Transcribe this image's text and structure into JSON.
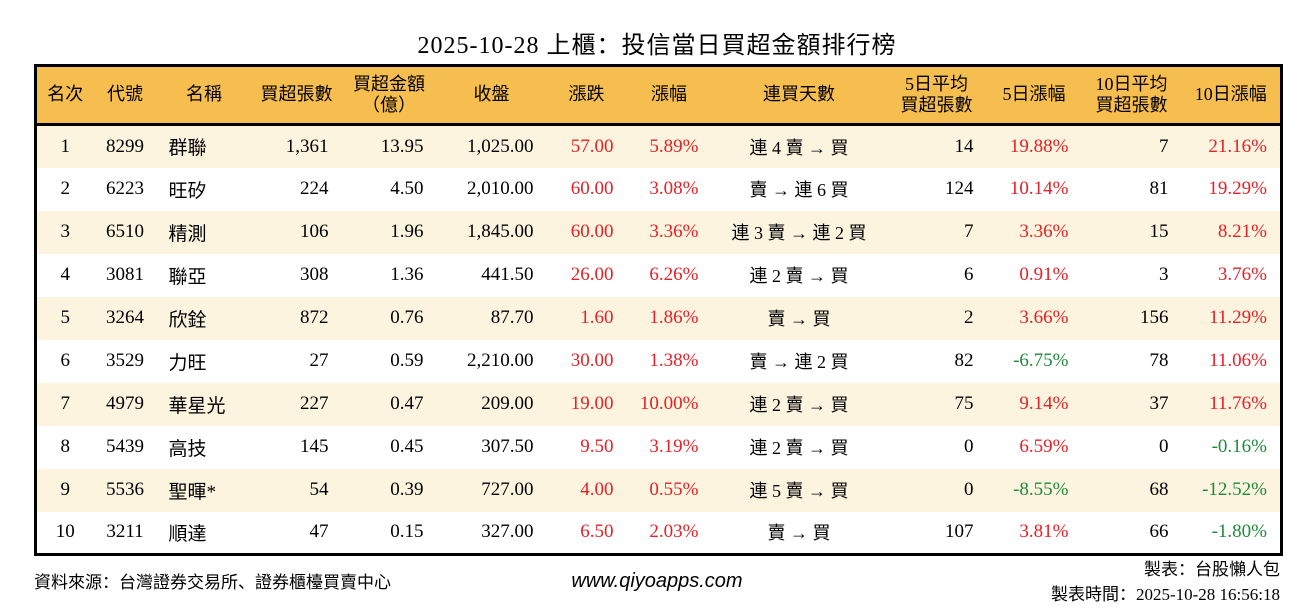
{
  "title": "2025-10-28 上櫃：投信當日買超金額排行榜",
  "colors": {
    "header_bg": "#F6BE4E",
    "row_alt_bg": "#FCF4DF",
    "row_bg": "#FFFFFF",
    "border": "#000000",
    "up_red": "#E32127",
    "down_green": "#1F8A3A"
  },
  "table": {
    "display_headers": [
      "名次",
      "代號",
      "名稱",
      "買超張數",
      "買超金額\n（億）",
      "收盤",
      "漲跌",
      "漲幅",
      "連買天數",
      "5日平均\n買超張數",
      "5日漲幅",
      "10日平均\n買超張數",
      "10日漲幅"
    ]
  },
  "chart_data": {
    "type": "table",
    "title": "2025-10-28 上櫃：投信當日買超金額排行榜",
    "columns": [
      "名次",
      "代號",
      "名稱",
      "買超張數",
      "買超金額（億）",
      "收盤",
      "漲跌",
      "漲幅",
      "連買天數",
      "5日平均買超張數",
      "5日漲幅",
      "10日平均買超張數",
      "10日漲幅"
    ],
    "rows": [
      [
        "1",
        "8299",
        "群聯",
        "1,361",
        "13.95",
        "1,025.00",
        "57.00",
        "5.89%",
        "連 4 賣 → 買",
        "14",
        "19.88%",
        "7",
        "21.16%"
      ],
      [
        "2",
        "6223",
        "旺矽",
        "224",
        "4.50",
        "2,010.00",
        "60.00",
        "3.08%",
        "賣 → 連 6 買",
        "124",
        "10.14%",
        "81",
        "19.29%"
      ],
      [
        "3",
        "6510",
        "精測",
        "106",
        "1.96",
        "1,845.00",
        "60.00",
        "3.36%",
        "連 3 賣 → 連 2 買",
        "7",
        "3.36%",
        "15",
        "8.21%"
      ],
      [
        "4",
        "3081",
        "聯亞",
        "308",
        "1.36",
        "441.50",
        "26.00",
        "6.26%",
        "連 2 賣 → 買",
        "6",
        "0.91%",
        "3",
        "3.76%"
      ],
      [
        "5",
        "3264",
        "欣銓",
        "872",
        "0.76",
        "87.70",
        "1.60",
        "1.86%",
        "賣 → 買",
        "2",
        "3.66%",
        "156",
        "11.29%"
      ],
      [
        "6",
        "3529",
        "力旺",
        "27",
        "0.59",
        "2,210.00",
        "30.00",
        "1.38%",
        "賣 → 連 2 買",
        "82",
        "-6.75%",
        "78",
        "11.06%"
      ],
      [
        "7",
        "4979",
        "華星光",
        "227",
        "0.47",
        "209.00",
        "19.00",
        "10.00%",
        "連 2 賣 → 買",
        "75",
        "9.14%",
        "37",
        "11.76%"
      ],
      [
        "8",
        "5439",
        "高技",
        "145",
        "0.45",
        "307.50",
        "9.50",
        "3.19%",
        "連 2 賣 → 買",
        "0",
        "6.59%",
        "0",
        "-0.16%"
      ],
      [
        "9",
        "5536",
        "聖暉*",
        "54",
        "0.39",
        "727.00",
        "4.00",
        "0.55%",
        "連 5 賣 → 買",
        "0",
        "-8.55%",
        "68",
        "-12.52%"
      ],
      [
        "10",
        "3211",
        "順達",
        "47",
        "0.15",
        "327.00",
        "6.50",
        "2.03%",
        "賣 → 買",
        "107",
        "3.81%",
        "66",
        "-1.80%"
      ]
    ]
  },
  "footer": {
    "source": "資料來源：台灣證券交易所、證券櫃檯買賣中心",
    "website": "www.qiyoapps.com",
    "credit": "製表：台股懶人包",
    "timestamp": "製表時間：2025-10-28 16:56:18"
  }
}
